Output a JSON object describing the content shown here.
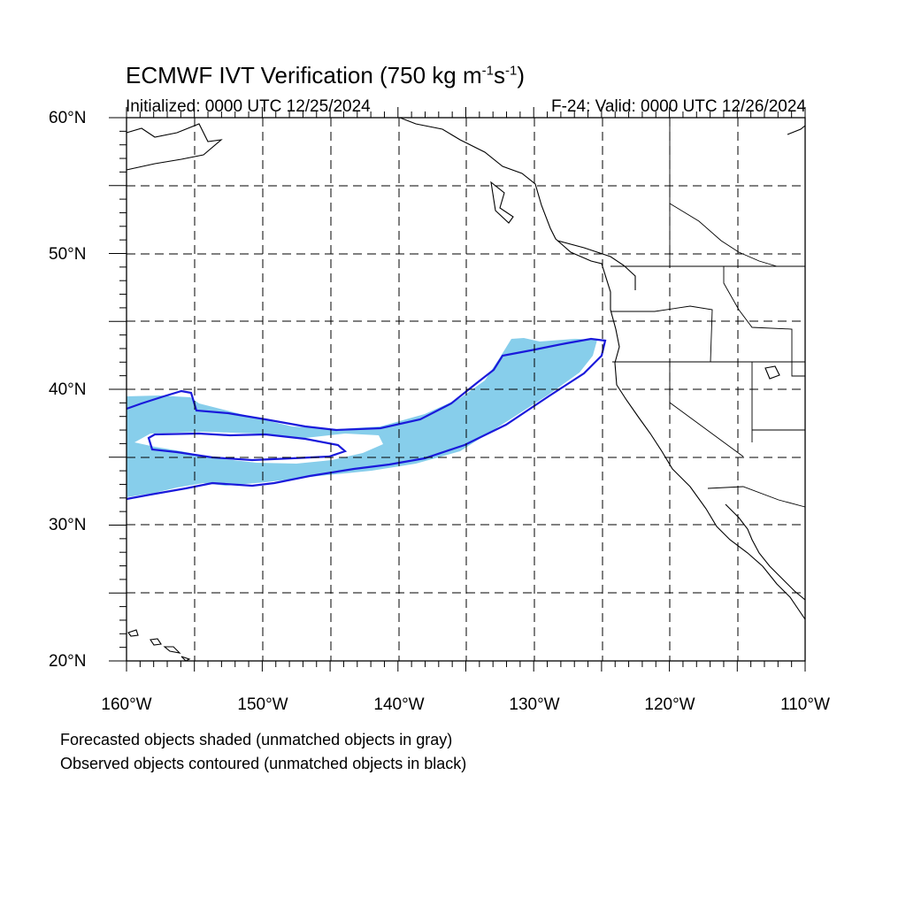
{
  "title": {
    "main": "ECMWF IVT Verification (750 kg m",
    "sup1": "-1",
    "mid": "s",
    "sup2": "-1",
    "end": ")"
  },
  "subtitle_left": "Initialized: 0000 UTC 12/25/2024",
  "subtitle_right": "F-24: Valid: 0000 UTC 12/26/2024",
  "lat_labels": [
    "60°N",
    "50°N",
    "40°N",
    "30°N",
    "20°N"
  ],
  "lon_labels": [
    "160°W",
    "150°W",
    "140°W",
    "130°W",
    "120°W",
    "110°W"
  ],
  "notes": [
    "Forecasted objects shaded (unmatched objects in gray)",
    "Observed objects contoured (unmatched objects in black)"
  ],
  "map": {
    "extent": {
      "lon_min": -160,
      "lon_max": -110,
      "lat_min": 20,
      "lat_max": 60
    },
    "grid": true,
    "forecast_fill_color": "#87ceeb",
    "observed_contour_color": "#1a1adb"
  }
}
